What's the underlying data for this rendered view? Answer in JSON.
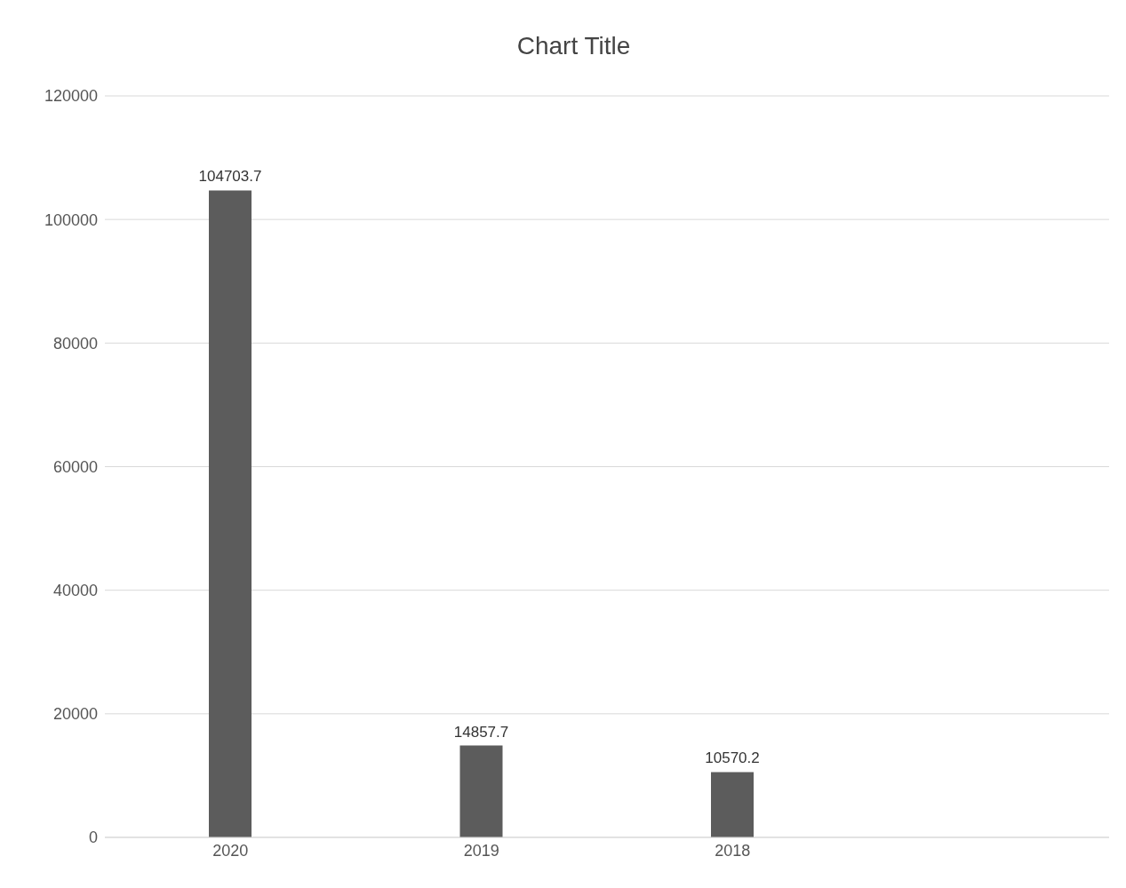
{
  "chart_data": {
    "type": "bar",
    "title": "Chart Title",
    "categories": [
      "2020",
      "2019",
      "2018",
      null
    ],
    "values": [
      104703.7,
      14857.7,
      10570.2,
      null
    ],
    "color": "#5c5c5c",
    "ylim": [
      0,
      120000
    ],
    "yticks": [
      0,
      20000,
      40000,
      60000,
      80000,
      100000,
      120000
    ],
    "grid": "y",
    "data_labels": true
  }
}
